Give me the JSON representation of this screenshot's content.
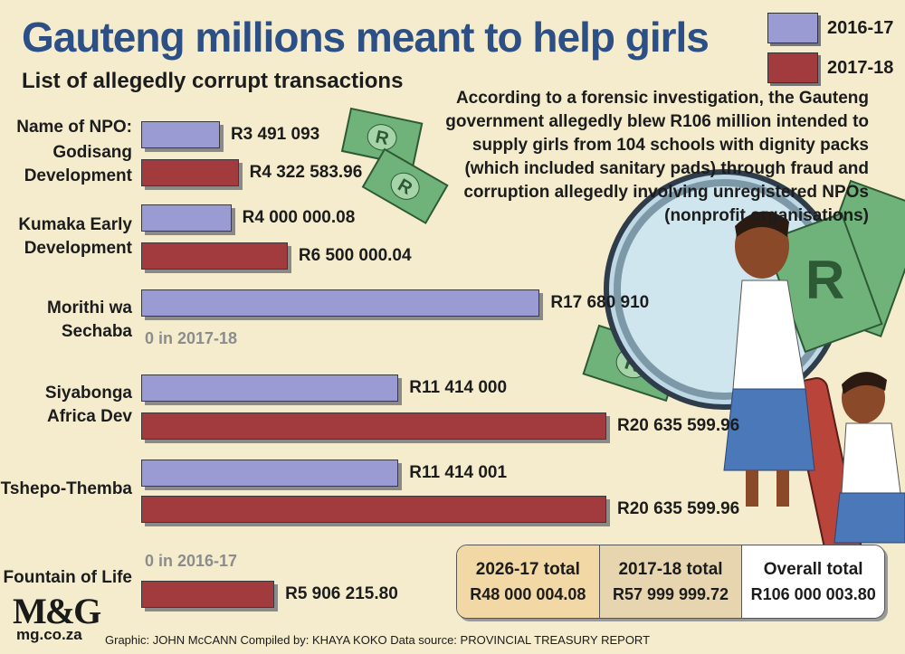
{
  "title": "Gauteng millions meant to help girls",
  "subtitle": "List of allegedly corrupt transactions",
  "intro": "According to a forensic investigation, the Gauteng government allegedly blew R106 million intended to supply girls from 104 schools with dignity packs (which included sanitary pads) through fraud and corruption allegedly involving unregistered NPOs (nonprofit organisations)",
  "npo_header": "Name of NPO:",
  "legend": [
    {
      "label": "2016-17",
      "color": "#9b9bd4"
    },
    {
      "label": "2017-18",
      "color": "#a13b3d"
    }
  ],
  "chart_data": {
    "type": "bar",
    "orientation": "horizontal",
    "categories": [
      "Godisang Development",
      "Kumaka Early Development",
      "Morithi wa Sechaba",
      "Siyabonga Africa Dev",
      "Tshepo-Themba",
      "Fountain of Life"
    ],
    "series": [
      {
        "name": "2016-17",
        "values": [
          3491093,
          4000000.08,
          17680910,
          11414000,
          11414001,
          0
        ],
        "labels": [
          "R3 491 093",
          "R4 000 000.08",
          "R17 680 910",
          "R11 414 000",
          "R11 414 001",
          ""
        ]
      },
      {
        "name": "2017-18",
        "values": [
          4322583.96,
          6500000.04,
          0,
          20635599.96,
          20635599.96,
          5906215.8
        ],
        "labels": [
          "R4 322 583.96",
          "R6 500 000.04",
          "",
          "R20 635 599.96",
          "R20 635 599.96",
          "R5 906 215.80"
        ]
      }
    ],
    "zero_notes": {
      "morithi_2017_18": "0 in 2017-18",
      "fountain_2016_17": "0 in 2016-17"
    }
  },
  "npo_names": {
    "godisang": [
      "Godisang",
      "Development"
    ],
    "kumaka": [
      "Kumaka Early",
      "Development"
    ],
    "morithi": [
      "Morithi wa",
      "Sechaba"
    ],
    "siyabonga": [
      "Siyabonga",
      "Africa Dev"
    ],
    "tshepo": [
      "Tshepo-Themba"
    ],
    "fountain": [
      "Fountain of Life"
    ]
  },
  "totals": [
    {
      "label": "2026-17 total",
      "value": "R48 000 004.08"
    },
    {
      "label": "2017-18 total",
      "value": "R57 999 999.72"
    },
    {
      "label": "Overall total",
      "value": "R106 000 003.80"
    }
  ],
  "logo": {
    "text": "M&G",
    "url": "mg.co.za"
  },
  "credits": "Graphic: JOHN McCANN  Compiled by: KHAYA KOKO  Data source: PROVINCIAL TREASURY REPORT",
  "banknote_letter": "R"
}
